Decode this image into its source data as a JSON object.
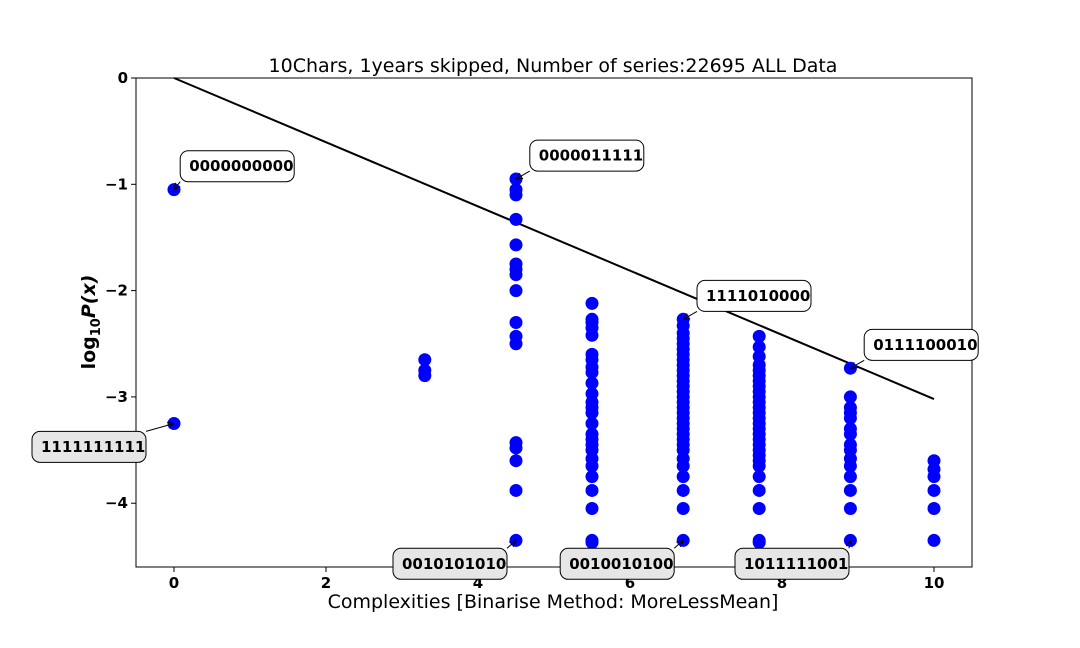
{
  "chart_data": {
    "type": "scatter",
    "title": "10Chars, 1years skipped, Number of series:22695 ALL Data",
    "xlabel": "Complexities [Binarise Method: MoreLessMean]",
    "ylabel_base": "log",
    "ylabel_sub": "10",
    "ylabel_rest": "P(x)",
    "xlim": [
      -0.5,
      10.5
    ],
    "ylim": [
      -4.6,
      0
    ],
    "xticks": [
      0,
      2,
      4,
      6,
      8,
      10
    ],
    "yticks": [
      0,
      -1,
      -2,
      -3,
      -4
    ],
    "ytick_labels": [
      "0",
      "−1",
      "−2",
      "−3",
      "−4"
    ],
    "grid": false,
    "marker_color": "#0000ff",
    "line_color": "#000000",
    "line": {
      "x": [
        0,
        10
      ],
      "y": [
        0,
        -3.02
      ]
    },
    "series": [
      {
        "x": 0,
        "y": [
          -1.05,
          -3.25
        ]
      },
      {
        "x": 3.3,
        "y": [
          -2.65,
          -2.75,
          -2.8
        ]
      },
      {
        "x": 4.5,
        "y": [
          -0.95,
          -1.05,
          -1.1,
          -1.33,
          -1.57,
          -1.75,
          -1.8,
          -1.85,
          -2.0,
          -2.3,
          -2.43,
          -2.5,
          -3.43,
          -3.48,
          -3.6,
          -3.88,
          -4.35
        ]
      },
      {
        "x": 5.5,
        "y": [
          -2.12,
          -2.27,
          -2.3,
          -2.35,
          -2.42,
          -2.6,
          -2.65,
          -2.72,
          -2.77,
          -2.87,
          -2.97,
          -3.05,
          -3.1,
          -3.15,
          -3.25,
          -3.35,
          -3.4,
          -3.45,
          -3.5,
          -3.58,
          -3.65,
          -3.75,
          -3.88,
          -4.05,
          -4.35,
          -4.37
        ]
      },
      {
        "x": 6.7,
        "y": [
          -2.27,
          -2.33,
          -2.4,
          -2.45,
          -2.5,
          -2.55,
          -2.6,
          -2.65,
          -2.7,
          -2.75,
          -2.8,
          -2.85,
          -2.9,
          -2.95,
          -3.0,
          -3.05,
          -3.1,
          -3.15,
          -3.2,
          -3.25,
          -3.3,
          -3.35,
          -3.4,
          -3.45,
          -3.5,
          -3.58,
          -3.65,
          -3.75,
          -3.88,
          -4.05,
          -4.35
        ]
      },
      {
        "x": 7.7,
        "y": [
          -2.43,
          -2.53,
          -2.62,
          -2.7,
          -2.75,
          -2.8,
          -2.85,
          -2.9,
          -2.95,
          -3.0,
          -3.05,
          -3.1,
          -3.15,
          -3.2,
          -3.25,
          -3.3,
          -3.35,
          -3.4,
          -3.45,
          -3.5,
          -3.55,
          -3.6,
          -3.65,
          -3.75,
          -3.88,
          -4.05,
          -4.35,
          -4.37
        ]
      },
      {
        "x": 8.9,
        "y": [
          -2.73,
          -3.0,
          -3.1,
          -3.15,
          -3.2,
          -3.3,
          -3.35,
          -3.45,
          -3.5,
          -3.58,
          -3.65,
          -3.75,
          -3.88,
          -4.05,
          -4.35
        ]
      },
      {
        "x": 10.0,
        "y": [
          -3.6,
          -3.68,
          -3.75,
          -3.88,
          -4.05,
          -4.35
        ]
      }
    ],
    "annotations": [
      {
        "text": "0000000000",
        "x": 0,
        "y": -1.05,
        "tx": 0.2,
        "ty": -0.83,
        "style": "white"
      },
      {
        "text": "1111111111",
        "x": 0,
        "y": -3.25,
        "tx": -1.75,
        "ty": -3.47,
        "style": "gray"
      },
      {
        "text": "0000011111",
        "x": 4.5,
        "y": -0.95,
        "tx": 4.8,
        "ty": -0.73,
        "style": "white"
      },
      {
        "text": "1111010000",
        "x": 6.7,
        "y": -2.27,
        "tx": 7.0,
        "ty": -2.05,
        "style": "white"
      },
      {
        "text": "0111100010",
        "x": 8.9,
        "y": -2.73,
        "tx": 9.2,
        "ty": -2.51,
        "style": "white"
      },
      {
        "text": "0010101010",
        "x": 4.5,
        "y": -4.35,
        "tx": 3.0,
        "ty": -4.57,
        "style": "gray"
      },
      {
        "text": "0010010100",
        "x": 6.7,
        "y": -4.35,
        "tx": 5.2,
        "ty": -4.57,
        "style": "gray"
      },
      {
        "text": "1011111001",
        "x": 8.9,
        "y": -4.35,
        "tx": 7.5,
        "ty": -4.57,
        "style": "gray"
      }
    ]
  }
}
